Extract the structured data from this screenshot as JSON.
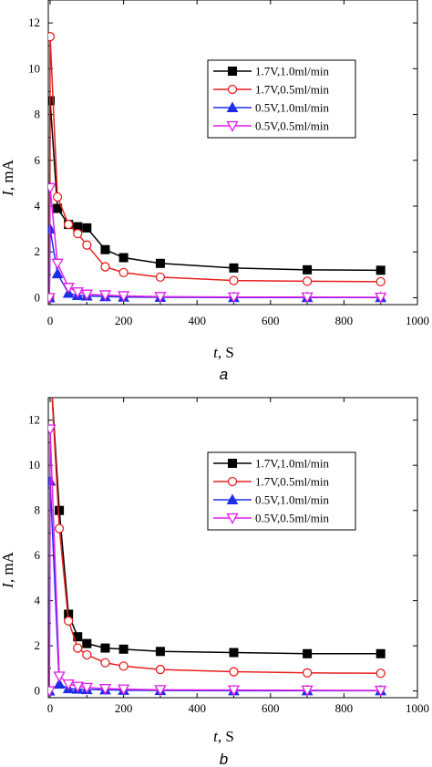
{
  "chart_data": [
    {
      "type": "line",
      "panel_label": "a",
      "xlabel_var": "t",
      "xlabel_unit": ", S",
      "ylabel_var": "I",
      "ylabel_unit": ", mA",
      "xlim": [
        -5,
        1000
      ],
      "ylim": [
        -0.3,
        13
      ],
      "xticks": [
        0,
        200,
        400,
        600,
        800,
        1000
      ],
      "yticks": [
        0,
        2,
        4,
        6,
        8,
        10,
        12
      ],
      "legend_position": "top-right",
      "series": [
        {
          "name": "1.7V,1.0ml/min",
          "color": "#000000",
          "marker": "square-filled",
          "x": [
            -2,
            0,
            20,
            50,
            75,
            100,
            150,
            200,
            300,
            500,
            700,
            900
          ],
          "y": [
            0,
            8.6,
            3.9,
            3.2,
            3.1,
            3.05,
            2.1,
            1.75,
            1.5,
            1.3,
            1.22,
            1.2
          ]
        },
        {
          "name": "1.7V,0.5ml/min",
          "color": "#e8201e",
          "marker": "circle-open",
          "x": [
            -2,
            0,
            20,
            50,
            75,
            100,
            150,
            200,
            300,
            500,
            700,
            900
          ],
          "y": [
            0,
            11.4,
            4.4,
            3.2,
            2.8,
            2.3,
            1.35,
            1.1,
            0.9,
            0.75,
            0.72,
            0.7
          ]
        },
        {
          "name": "0.5V,1.0ml/min",
          "color": "#1d2ee8",
          "marker": "triangle-up-filled",
          "x": [
            -2,
            0,
            20,
            50,
            75,
            100,
            150,
            200,
            300,
            500,
            700,
            900
          ],
          "y": [
            0,
            3.0,
            1.05,
            0.2,
            0.1,
            0.08,
            0.05,
            0.03,
            0.02,
            0.01,
            0.01,
            0.01
          ]
        },
        {
          "name": "0.5V,0.5ml/min",
          "color": "#e21de8",
          "marker": "triangle-down-open",
          "x": [
            -2,
            0,
            20,
            50,
            75,
            100,
            150,
            200,
            300,
            500,
            700,
            900
          ],
          "y": [
            0,
            4.8,
            1.5,
            0.45,
            0.25,
            0.15,
            0.12,
            0.08,
            0.05,
            0.03,
            0.03,
            0.02
          ]
        }
      ]
    },
    {
      "type": "line",
      "panel_label": "b",
      "xlabel_var": "t",
      "xlabel_unit": ", S",
      "ylabel_var": "I",
      "ylabel_unit": ", mA",
      "xlim": [
        -5,
        1000
      ],
      "ylim": [
        -0.3,
        13
      ],
      "xticks": [
        0,
        200,
        400,
        600,
        800,
        1000
      ],
      "yticks": [
        0,
        2,
        4,
        6,
        8,
        10,
        12
      ],
      "legend_position": "top-right",
      "series": [
        {
          "name": "1.7V,1.0ml/min",
          "color": "#000000",
          "marker": "square-filled",
          "x": [
            2,
            25,
            50,
            75,
            100,
            150,
            200,
            300,
            500,
            700,
            900
          ],
          "y": [
            14,
            8.0,
            3.4,
            2.4,
            2.1,
            1.9,
            1.85,
            1.75,
            1.7,
            1.65,
            1.65
          ]
        },
        {
          "name": "1.7V,0.5ml/min",
          "color": "#e8201e",
          "marker": "circle-open",
          "x": [
            2,
            25,
            50,
            75,
            100,
            150,
            200,
            300,
            500,
            700,
            900
          ],
          "y": [
            14,
            7.2,
            3.1,
            1.9,
            1.6,
            1.25,
            1.1,
            0.95,
            0.85,
            0.8,
            0.78
          ]
        },
        {
          "name": "0.5V,1.0ml/min",
          "color": "#1d2ee8",
          "marker": "triangle-up-filled",
          "x": [
            -2,
            0,
            25,
            50,
            75,
            100,
            150,
            200,
            300,
            500,
            700,
            900
          ],
          "y": [
            0,
            9.3,
            0.3,
            0.1,
            0.08,
            0.06,
            0.05,
            0.03,
            0.02,
            0.01,
            0.01,
            0.01
          ]
        },
        {
          "name": "0.5V,0.5ml/min",
          "color": "#e21de8",
          "marker": "triangle-down-open",
          "x": [
            -2,
            0,
            25,
            50,
            75,
            100,
            150,
            200,
            300,
            500,
            700,
            900
          ],
          "y": [
            0,
            11.6,
            0.65,
            0.3,
            0.2,
            0.15,
            0.1,
            0.08,
            0.05,
            0.04,
            0.03,
            0.02
          ]
        }
      ]
    }
  ]
}
